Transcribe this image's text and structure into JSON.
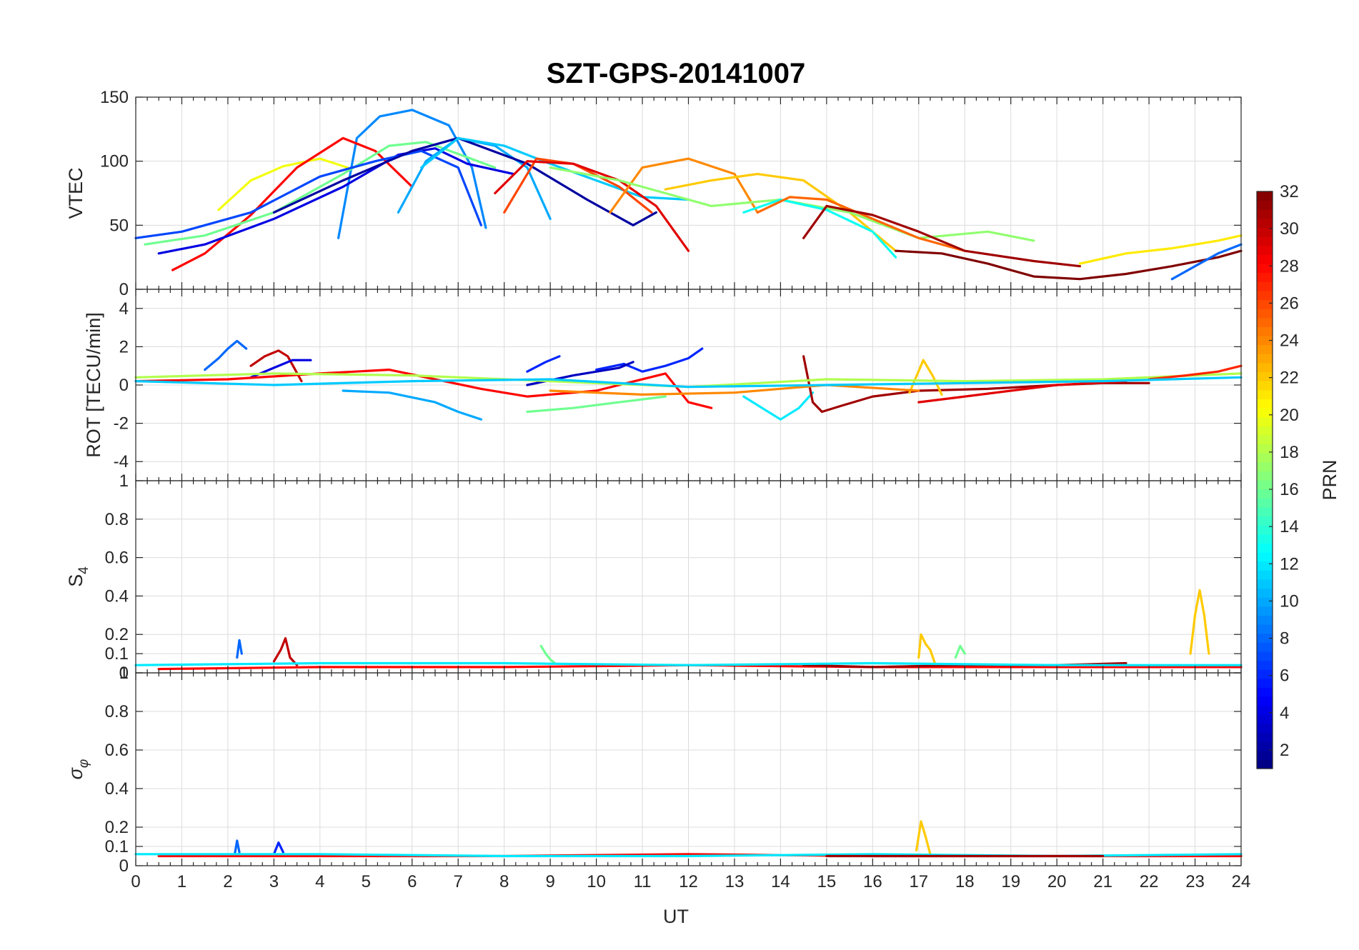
{
  "title": "SZT-GPS-20141007",
  "chart_data": {
    "type": "line",
    "title": "SZT-GPS-20141007",
    "xlabel": "UT",
    "xlim": [
      0,
      24
    ],
    "xticks": [
      0,
      1,
      2,
      3,
      4,
      5,
      6,
      7,
      8,
      9,
      10,
      11,
      12,
      13,
      14,
      15,
      16,
      17,
      18,
      19,
      20,
      21,
      22,
      23,
      24
    ],
    "colorbar": {
      "label": "PRN",
      "range": [
        1,
        32
      ],
      "ticks": [
        2,
        4,
        6,
        8,
        10,
        12,
        14,
        16,
        18,
        20,
        22,
        24,
        26,
        28,
        30,
        32
      ]
    },
    "panels": [
      {
        "id": "vtec",
        "ylabel": "VTEC",
        "ylim": [
          0,
          150
        ],
        "yticks": [
          0,
          50,
          100,
          150
        ],
        "series": [
          {
            "prn": 20,
            "x": [
              1.8,
              2.5,
              3.2,
              4.0,
              4.6
            ],
            "y": [
              62,
              85,
              96,
              102,
              95
            ]
          },
          {
            "prn": 9,
            "x": [
              4.4,
              4.8,
              5.3,
              6.0,
              6.8,
              7.3,
              7.6
            ],
            "y": [
              40,
              118,
              135,
              140,
              128,
              95,
              48
            ]
          },
          {
            "prn": 28,
            "x": [
              0.8,
              1.5,
              2.5,
              3.5,
              4.5,
              5.2,
              6.0
            ],
            "y": [
              15,
              28,
              58,
              95,
              118,
              108,
              80
            ]
          },
          {
            "prn": 16,
            "x": [
              0.2,
              1.5,
              3.0,
              4.5,
              5.5,
              6.3,
              7.2,
              7.8
            ],
            "y": [
              35,
              42,
              60,
              90,
              112,
              115,
              103,
              95
            ]
          },
          {
            "prn": 4,
            "x": [
              0.5,
              1.5,
              3.0,
              4.5,
              5.7,
              6.5,
              7.2,
              8.2
            ],
            "y": [
              28,
              35,
              55,
              80,
              105,
              110,
              98,
              90
            ]
          },
          {
            "prn": 7,
            "x": [
              0.0,
              1.0,
              2.5,
              4.0,
              5.2,
              6.2,
              7.0,
              7.5
            ],
            "y": [
              40,
              45,
              60,
              88,
              100,
              108,
              95,
              50
            ]
          },
          {
            "prn": 10,
            "x": [
              5.7,
              6.3,
              7.0,
              7.8,
              8.5,
              9.0
            ],
            "y": [
              60,
              100,
              118,
              112,
              95,
              55
            ]
          },
          {
            "prn": 2,
            "x": [
              3.0,
              4.5,
              6.0,
              7.0,
              8.5,
              9.8,
              10.8,
              11.3
            ],
            "y": [
              60,
              85,
              108,
              118,
              98,
              70,
              50,
              60
            ]
          },
          {
            "prn": 11,
            "x": [
              6.2,
              7.0,
              8.0,
              9.0,
              10.0,
              11.0,
              12.0
            ],
            "y": [
              95,
              118,
              112,
              98,
              85,
              72,
              70
            ]
          },
          {
            "prn": 26,
            "x": [
              8.0,
              8.7,
              9.5,
              10.5,
              11.2
            ],
            "y": [
              60,
              102,
              98,
              80,
              60
            ]
          },
          {
            "prn": 29,
            "x": [
              7.8,
              8.5,
              9.5,
              10.5,
              11.3,
              12.0
            ],
            "y": [
              75,
              100,
              98,
              85,
              65,
              30
            ]
          },
          {
            "prn": 24,
            "x": [
              10.3,
              11.0,
              12.0,
              13.0,
              13.5
            ],
            "y": [
              60,
              95,
              102,
              90,
              60
            ]
          },
          {
            "prn": 22,
            "x": [
              11.5,
              12.5,
              13.5,
              14.5,
              15.5,
              16.5
            ],
            "y": [
              78,
              85,
              90,
              85,
              60,
              30
            ]
          },
          {
            "prn": 17,
            "x": [
              9.0,
              10.5,
              11.5,
              12.5,
              14.0,
              15.5,
              17.0,
              18.5,
              19.5
            ],
            "y": [
              95,
              85,
              75,
              65,
              70,
              60,
              40,
              45,
              38
            ]
          },
          {
            "prn": 13,
            "x": [
              13.2,
              14.0,
              15.0,
              16.0,
              16.5
            ],
            "y": [
              60,
              70,
              62,
              45,
              25
            ]
          },
          {
            "prn": 25,
            "x": [
              13.5,
              14.2,
              15.0,
              16.0,
              17.0,
              18.0
            ],
            "y": [
              60,
              72,
              70,
              55,
              40,
              30
            ]
          },
          {
            "prn": 31,
            "x": [
              14.5,
              15.0,
              16.0,
              17.0,
              18.0,
              19.5,
              20.5
            ],
            "y": [
              40,
              65,
              58,
              45,
              30,
              22,
              18
            ]
          },
          {
            "prn": 32,
            "x": [
              16.5,
              17.5,
              18.5,
              19.5,
              20.5,
              21.5,
              22.5,
              23.5,
              24.0
            ],
            "y": [
              30,
              28,
              20,
              10,
              8,
              12,
              18,
              25,
              30
            ]
          },
          {
            "prn": 21,
            "x": [
              20.5,
              21.5,
              22.5,
              23.5,
              24.0
            ],
            "y": [
              20,
              28,
              32,
              38,
              42
            ]
          },
          {
            "prn": 8,
            "x": [
              22.5,
              23.0,
              23.5,
              24.0
            ],
            "y": [
              8,
              18,
              28,
              35
            ]
          }
        ]
      },
      {
        "id": "rot",
        "ylabel": "ROT [TECU/min]",
        "ylim": [
          -5,
          5
        ],
        "yticks": [
          -4,
          -2,
          0,
          2,
          4
        ],
        "series": [
          {
            "prn": 8,
            "x": [
              1.5,
              1.8,
              2.0,
              2.2,
              2.4
            ],
            "y": [
              0.8,
              1.4,
              1.9,
              2.3,
              1.9
            ]
          },
          {
            "prn": 30,
            "x": [
              2.5,
              2.8,
              3.1,
              3.3,
              3.6
            ],
            "y": [
              1.0,
              1.5,
              1.8,
              1.5,
              0.2
            ]
          },
          {
            "prn": 4,
            "x": [
              2.5,
              3.0,
              3.4,
              3.8
            ],
            "y": [
              0.4,
              0.9,
              1.3,
              1.3
            ]
          },
          {
            "prn": 28,
            "x": [
              0.0,
              2.0,
              4.0,
              5.5,
              6.5,
              7.5,
              8.5,
              10.0,
              11.5,
              12.0,
              12.5
            ],
            "y": [
              0.2,
              0.3,
              0.6,
              0.8,
              0.3,
              -0.2,
              -0.6,
              -0.3,
              0.6,
              -0.9,
              -1.2
            ]
          },
          {
            "prn": 10,
            "x": [
              4.5,
              5.5,
              6.5,
              7.0,
              7.5
            ],
            "y": [
              -0.3,
              -0.4,
              -0.9,
              -1.4,
              -1.8
            ]
          },
          {
            "prn": 6,
            "x": [
              8.5,
              8.9,
              9.2
            ],
            "y": [
              0.7,
              1.2,
              1.5
            ]
          },
          {
            "prn": 6,
            "x": [
              10.0,
              10.6,
              11.0,
              11.5,
              12.0,
              12.3
            ],
            "y": [
              0.8,
              1.1,
              0.7,
              1.0,
              1.4,
              1.9
            ]
          },
          {
            "prn": 3,
            "x": [
              8.5,
              9.5,
              10.5,
              10.8
            ],
            "y": [
              0.0,
              0.5,
              0.9,
              1.2
            ]
          },
          {
            "prn": 16,
            "x": [
              8.5,
              9.5,
              10.5,
              11.5
            ],
            "y": [
              -1.4,
              -1.2,
              -0.9,
              -0.6
            ]
          },
          {
            "prn": 12,
            "x": [
              13.2,
              13.6,
              14.0,
              14.4,
              14.7
            ],
            "y": [
              -0.6,
              -1.2,
              -1.8,
              -1.2,
              -0.4
            ]
          },
          {
            "prn": 31,
            "x": [
              14.5,
              14.7,
              14.9,
              15.3,
              16.0,
              17.0,
              18.5,
              20.0,
              21.0,
              22.0
            ],
            "y": [
              1.5,
              -0.9,
              -1.4,
              -1.1,
              -0.6,
              -0.3,
              -0.2,
              0.0,
              0.1,
              0.1
            ]
          },
          {
            "prn": 22,
            "x": [
              16.8,
              17.1,
              17.3,
              17.5
            ],
            "y": [
              -0.4,
              1.3,
              0.5,
              -0.5
            ]
          },
          {
            "prn": 29,
            "x": [
              17.0,
              18.0,
              19.0,
              20.0,
              21.5
            ],
            "y": [
              -0.9,
              -0.6,
              -0.3,
              0.0,
              0.2
            ]
          },
          {
            "prn": 24,
            "x": [
              9.0,
              11.0,
              13.0,
              15.0,
              17.0
            ],
            "y": [
              -0.3,
              -0.5,
              -0.4,
              0.0,
              -0.3
            ]
          },
          {
            "prn": 18,
            "x": [
              0.0,
              3.0,
              6.0,
              9.0,
              12.0,
              15.0,
              18.0,
              21.0,
              24.0
            ],
            "y": [
              0.4,
              0.6,
              0.5,
              0.2,
              -0.1,
              0.3,
              0.2,
              0.3,
              0.6
            ]
          },
          {
            "prn": 27,
            "x": [
              22.0,
              22.8,
              23.5,
              24.0
            ],
            "y": [
              0.3,
              0.5,
              0.7,
              1.0
            ]
          },
          {
            "prn": 11,
            "x": [
              0.0,
              3.0,
              6.0,
              9.0,
              12.0,
              15.0,
              18.0,
              21.0,
              24.0
            ],
            "y": [
              0.2,
              0.0,
              0.2,
              0.3,
              -0.1,
              0.0,
              0.1,
              0.2,
              0.4
            ]
          }
        ]
      },
      {
        "id": "s4",
        "ylabel": "S4",
        "ylim": [
          0,
          1
        ],
        "yticks": [
          0,
          0.1,
          0.2,
          0.4,
          0.6,
          0.8,
          1
        ],
        "series": [
          {
            "prn": 8,
            "x": [
              2.2,
              2.25,
              2.3
            ],
            "y": [
              0.08,
              0.17,
              0.1
            ]
          },
          {
            "prn": 30,
            "x": [
              3.0,
              3.15,
              3.25,
              3.35,
              3.5
            ],
            "y": [
              0.06,
              0.12,
              0.18,
              0.08,
              0.04
            ]
          },
          {
            "prn": 16,
            "x": [
              8.8,
              8.9,
              9.0,
              9.1
            ],
            "y": [
              0.14,
              0.1,
              0.07,
              0.05
            ]
          },
          {
            "prn": 22,
            "x": [
              17.0,
              17.05,
              17.15,
              17.25,
              17.35
            ],
            "y": [
              0.08,
              0.2,
              0.15,
              0.12,
              0.05
            ]
          },
          {
            "prn": 22,
            "x": [
              22.9,
              23.0,
              23.1,
              23.2,
              23.3
            ],
            "y": [
              0.1,
              0.3,
              0.43,
              0.3,
              0.1
            ]
          },
          {
            "prn": 16,
            "x": [
              17.8,
              17.9,
              18.0
            ],
            "y": [
              0.08,
              0.14,
              0.1
            ]
          },
          {
            "prn": 28,
            "x": [
              0.5,
              4.0,
              8.0,
              12.0,
              16.0,
              20.0,
              24.0
            ],
            "y": [
              0.02,
              0.03,
              0.03,
              0.04,
              0.03,
              0.03,
              0.03
            ]
          },
          {
            "prn": 31,
            "x": [
              14.5,
              16.0,
              18.0,
              20.0,
              21.5
            ],
            "y": [
              0.04,
              0.03,
              0.04,
              0.04,
              0.05
            ]
          },
          {
            "prn": 12,
            "x": [
              0.0,
              4.0,
              8.0,
              12.0,
              16.0,
              20.0,
              24.0
            ],
            "y": [
              0.04,
              0.05,
              0.05,
              0.04,
              0.05,
              0.04,
              0.04
            ]
          }
        ]
      },
      {
        "id": "sigphi",
        "ylabel": "σφ",
        "ylim": [
          0,
          1
        ],
        "yticks": [
          0,
          0.1,
          0.2,
          0.4,
          0.6,
          0.8,
          1
        ],
        "series": [
          {
            "prn": 8,
            "x": [
              2.15,
              2.2,
              2.25
            ],
            "y": [
              0.06,
              0.13,
              0.07
            ]
          },
          {
            "prn": 6,
            "x": [
              3.0,
              3.1,
              3.2
            ],
            "y": [
              0.06,
              0.12,
              0.07
            ]
          },
          {
            "prn": 22,
            "x": [
              16.95,
              17.05,
              17.15,
              17.25
            ],
            "y": [
              0.08,
              0.23,
              0.15,
              0.06
            ]
          },
          {
            "prn": 28,
            "x": [
              0.5,
              4.0,
              8.0,
              12.0,
              16.0,
              20.0,
              24.0
            ],
            "y": [
              0.05,
              0.05,
              0.05,
              0.06,
              0.05,
              0.05,
              0.05
            ]
          },
          {
            "prn": 12,
            "x": [
              0.0,
              4.0,
              8.0,
              12.0,
              16.0,
              20.0,
              24.0
            ],
            "y": [
              0.06,
              0.06,
              0.05,
              0.05,
              0.06,
              0.05,
              0.06
            ]
          },
          {
            "prn": 31,
            "x": [
              15.0,
              17.0,
              19.0,
              21.0
            ],
            "y": [
              0.05,
              0.05,
              0.05,
              0.05
            ]
          }
        ]
      }
    ]
  }
}
